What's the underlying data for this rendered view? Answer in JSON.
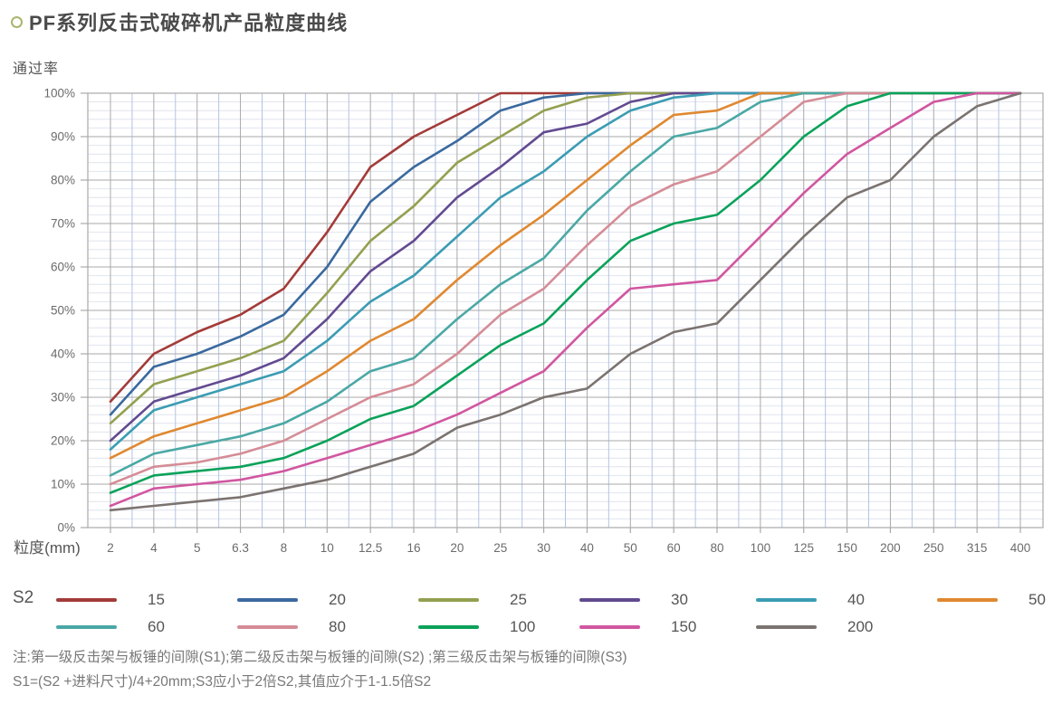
{
  "title": {
    "text": "PF系列反击式破碎机产品粒度曲线",
    "bullet_icon": "ring-bullet",
    "bullet_color": "#a9b56b"
  },
  "notes": {
    "line1": "注:第一级反击架与板锤的间隙(S1);第二级反击架与板锤的间隙(S2) ;第三级反击架与板锤的间隙(S3)",
    "line2": "S1=(S2 +进料尺寸)/4+20mm;S3应小于2倍S2,其值应介于1-1.5倍S2"
  },
  "chart_data": {
    "type": "line",
    "title": "PF系列反击式破碎机产品粒度曲线",
    "ylabel": "通过率",
    "xlabel": "粒度(mm)",
    "ylim": [
      0,
      100
    ],
    "grid": "major gray with light-blue minor gridlines",
    "legend_title": "S2",
    "legend_position": "bottom",
    "y_tick_labels": [
      "0%",
      "10%",
      "20%",
      "30%",
      "40%",
      "50%",
      "60%",
      "70%",
      "80%",
      "90%",
      "100%"
    ],
    "x_tick_labels": [
      "2",
      "4",
      "5",
      "6.3",
      "8",
      "10",
      "12.5",
      "16",
      "20",
      "25",
      "30",
      "40",
      "50",
      "60",
      "80",
      "100",
      "125",
      "150",
      "200",
      "250",
      "315",
      "400"
    ],
    "series": [
      {
        "name": "15",
        "color": "#a33b38",
        "values": [
          29,
          40,
          45,
          49,
          55,
          68,
          83,
          90,
          95,
          100,
          100,
          100,
          100,
          100,
          100,
          100,
          100,
          100,
          100,
          100,
          100,
          100
        ]
      },
      {
        "name": "20",
        "color": "#3a699e",
        "values": [
          26,
          37,
          40,
          44,
          49,
          60,
          75,
          83,
          89,
          96,
          99,
          100,
          100,
          100,
          100,
          100,
          100,
          100,
          100,
          100,
          100,
          100
        ]
      },
      {
        "name": "25",
        "color": "#93a050",
        "values": [
          24,
          33,
          36,
          39,
          43,
          54,
          66,
          74,
          84,
          90,
          96,
          99,
          100,
          100,
          100,
          100,
          100,
          100,
          100,
          100,
          100,
          100
        ]
      },
      {
        "name": "30",
        "color": "#624a90",
        "values": [
          20,
          29,
          32,
          35,
          39,
          48,
          59,
          66,
          76,
          83,
          91,
          93,
          98,
          100,
          100,
          100,
          100,
          100,
          100,
          100,
          100,
          100
        ]
      },
      {
        "name": "40",
        "color": "#3b9cb3",
        "values": [
          18,
          27,
          30,
          33,
          36,
          43,
          52,
          58,
          67,
          76,
          82,
          90,
          96,
          99,
          100,
          100,
          100,
          100,
          100,
          100,
          100,
          100
        ]
      },
      {
        "name": "50",
        "color": "#e08830",
        "values": [
          16,
          21,
          24,
          27,
          30,
          36,
          43,
          48,
          57,
          65,
          72,
          80,
          88,
          95,
          96,
          100,
          100,
          100,
          100,
          100,
          100,
          100
        ]
      },
      {
        "name": "60",
        "color": "#4aa8a5",
        "values": [
          12,
          17,
          19,
          21,
          24,
          29,
          36,
          39,
          48,
          56,
          62,
          73,
          82,
          90,
          92,
          98,
          100,
          100,
          100,
          100,
          100,
          100
        ]
      },
      {
        "name": "80",
        "color": "#d58c96",
        "values": [
          10,
          14,
          15,
          17,
          20,
          25,
          30,
          33,
          40,
          49,
          55,
          65,
          74,
          79,
          82,
          90,
          98,
          100,
          100,
          100,
          100,
          100
        ]
      },
      {
        "name": "100",
        "color": "#0aa25a",
        "values": [
          8,
          12,
          13,
          14,
          16,
          20,
          25,
          28,
          35,
          42,
          47,
          57,
          66,
          70,
          72,
          80,
          90,
          97,
          100,
          100,
          100,
          100
        ]
      },
      {
        "name": "150",
        "color": "#d156a0",
        "values": [
          5,
          9,
          10,
          11,
          13,
          16,
          19,
          22,
          26,
          31,
          36,
          46,
          55,
          56,
          57,
          67,
          77,
          86,
          92,
          98,
          100,
          100
        ]
      },
      {
        "name": "200",
        "color": "#7b7370",
        "values": [
          4,
          5,
          6,
          7,
          9,
          11,
          14,
          17,
          23,
          26,
          30,
          32,
          40,
          45,
          47,
          57,
          67,
          76,
          80,
          90,
          97,
          100
        ]
      }
    ],
    "colors": {
      "grid_major": "#a9a9a9",
      "grid_minor_h": "#e0e4ee",
      "grid_minor_v": "#b3c3e3",
      "axis_text": "#6b6b6b"
    }
  }
}
